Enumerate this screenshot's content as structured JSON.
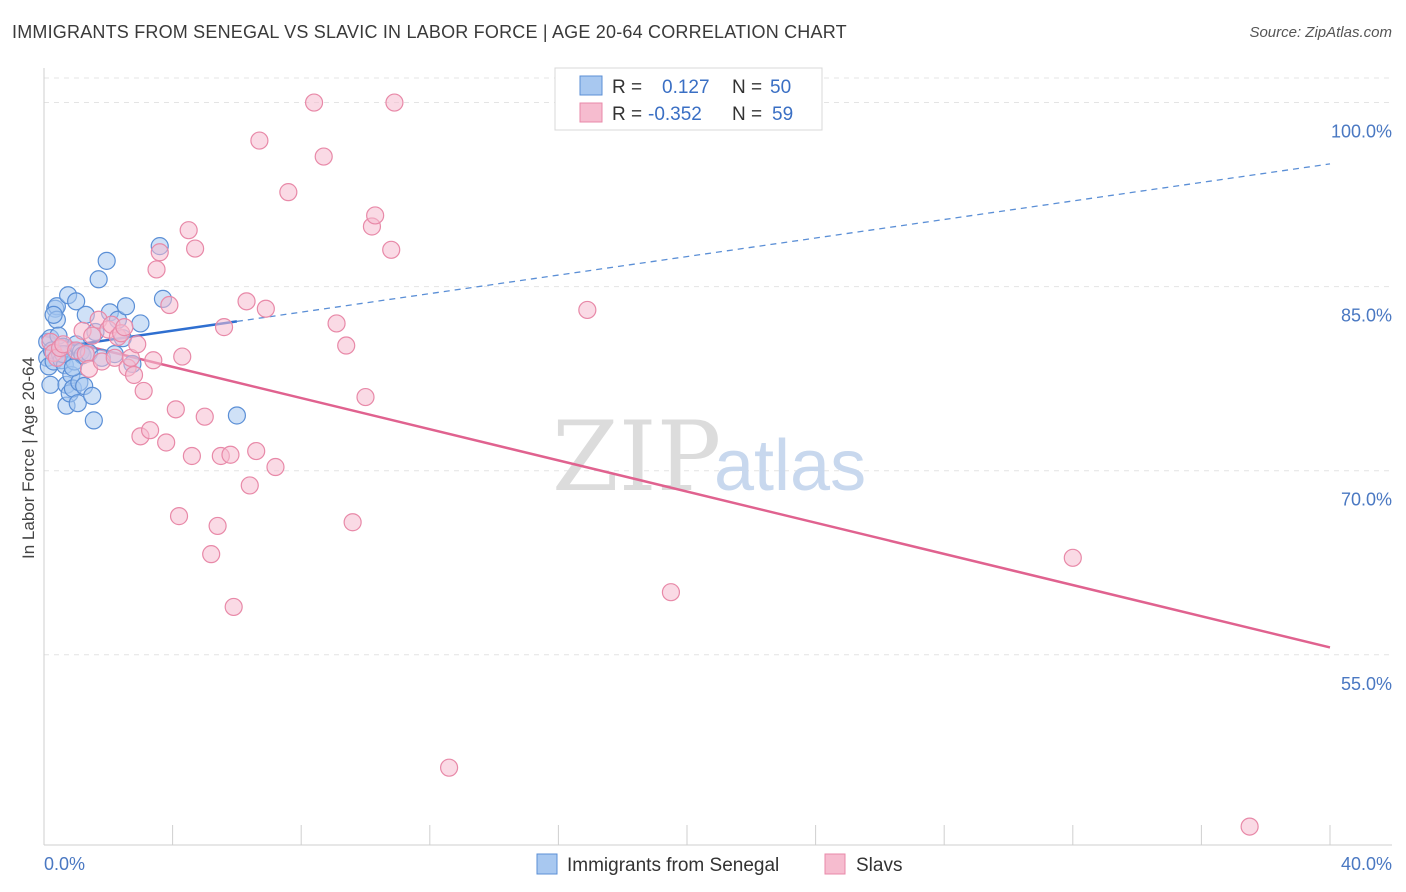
{
  "title": "IMMIGRANTS FROM SENEGAL VS SLAVIC IN LABOR FORCE | AGE 20-64 CORRELATION CHART",
  "source": "Source: ZipAtlas.com",
  "watermark": {
    "zip": "ZIP",
    "atlas": "atlas"
  },
  "colors": {
    "blue_fill": "#a8c8f0",
    "blue_stroke": "#5b8fd6",
    "blue_line": "#2f6fd0",
    "pink_fill": "#f6bccf",
    "pink_stroke": "#e889a8",
    "pink_line": "#e0628f",
    "grid": "#e4e4e4",
    "axis_label": "#4a78c2"
  },
  "legend": {
    "rows": [
      {
        "r_label": "R =",
        "r_value": "0.127",
        "n_label": "N =",
        "n_value": "50"
      },
      {
        "r_label": "R =",
        "r_value": "-0.352",
        "n_label": "N =",
        "n_value": "59"
      }
    ]
  },
  "chart_data": {
    "type": "scatter",
    "title": "IMMIGRANTS FROM SENEGAL VS SLAVIC IN LABOR FORCE | AGE 20-64 CORRELATION CHART",
    "xlabel": "",
    "ylabel": "In Labor Force | Age 20-64",
    "xlim": [
      0,
      40
    ],
    "ylim": [
      39.5,
      102
    ],
    "x_tick_labels": [
      "0.0%",
      "40.0%"
    ],
    "y_ticks": [
      55,
      70,
      85,
      100
    ],
    "y_tick_labels": [
      "55.0%",
      "70.0%",
      "85.0%",
      "100.0%"
    ],
    "grid": true,
    "series": [
      {
        "name": "Immigrants from Senegal",
        "r": 0.127,
        "n": 50,
        "trend": {
          "x0": 0,
          "y0": 79.9,
          "x_solid_end": 6.0,
          "x1": 40,
          "y1": 95.0
        },
        "points": [
          [
            0.1,
            80.5
          ],
          [
            0.1,
            79.2
          ],
          [
            0.15,
            78.5
          ],
          [
            0.2,
            80.8
          ],
          [
            0.2,
            77.0
          ],
          [
            0.25,
            79.8
          ],
          [
            0.3,
            78.9
          ],
          [
            0.35,
            83.2
          ],
          [
            0.4,
            83.4
          ],
          [
            0.4,
            82.3
          ],
          [
            0.45,
            81.0
          ],
          [
            0.5,
            79.5
          ],
          [
            0.55,
            79.0
          ],
          [
            0.6,
            80.1
          ],
          [
            0.65,
            78.6
          ],
          [
            0.7,
            77.0
          ],
          [
            0.7,
            75.3
          ],
          [
            0.75,
            84.3
          ],
          [
            0.8,
            76.3
          ],
          [
            0.85,
            77.8
          ],
          [
            0.9,
            76.7
          ],
          [
            0.95,
            78.9
          ],
          [
            1.0,
            83.8
          ],
          [
            1.0,
            80.3
          ],
          [
            1.05,
            75.5
          ],
          [
            1.1,
            77.2
          ],
          [
            1.15,
            79.7
          ],
          [
            1.2,
            79.4
          ],
          [
            1.25,
            76.9
          ],
          [
            1.3,
            82.7
          ],
          [
            1.4,
            79.6
          ],
          [
            1.5,
            76.1
          ],
          [
            1.55,
            74.1
          ],
          [
            1.6,
            81.3
          ],
          [
            1.7,
            85.6
          ],
          [
            1.8,
            79.2
          ],
          [
            1.95,
            87.1
          ],
          [
            2.05,
            82.9
          ],
          [
            2.2,
            79.5
          ],
          [
            2.3,
            82.3
          ],
          [
            2.45,
            80.8
          ],
          [
            2.55,
            83.4
          ],
          [
            2.75,
            78.7
          ],
          [
            0.3,
            82.7
          ],
          [
            0.6,
            79.5
          ],
          [
            3.0,
            82.0
          ],
          [
            3.6,
            88.3
          ],
          [
            3.7,
            84.0
          ],
          [
            6.0,
            74.5
          ],
          [
            0.9,
            78.4
          ]
        ]
      },
      {
        "name": "Slavs",
        "r": -0.352,
        "n": 59,
        "trend": {
          "x0": 0,
          "y0": 81.0,
          "x1": 40,
          "y1": 55.6
        },
        "points": [
          [
            0.2,
            80.5
          ],
          [
            0.3,
            79.6
          ],
          [
            0.4,
            79.2
          ],
          [
            0.5,
            80.0
          ],
          [
            0.6,
            80.3
          ],
          [
            1.0,
            79.8
          ],
          [
            1.2,
            81.4
          ],
          [
            1.3,
            79.5
          ],
          [
            1.4,
            78.3
          ],
          [
            1.5,
            81.0
          ],
          [
            1.7,
            82.3
          ],
          [
            1.8,
            78.9
          ],
          [
            2.0,
            81.5
          ],
          [
            2.1,
            81.9
          ],
          [
            2.2,
            79.2
          ],
          [
            2.3,
            80.9
          ],
          [
            2.4,
            81.2
          ],
          [
            2.5,
            81.7
          ],
          [
            2.6,
            78.4
          ],
          [
            2.7,
            79.2
          ],
          [
            2.8,
            77.8
          ],
          [
            2.9,
            80.3
          ],
          [
            3.0,
            72.8
          ],
          [
            3.1,
            76.5
          ],
          [
            3.3,
            73.3
          ],
          [
            3.4,
            79.0
          ],
          [
            3.5,
            86.4
          ],
          [
            3.6,
            87.8
          ],
          [
            3.8,
            72.3
          ],
          [
            3.9,
            83.5
          ],
          [
            4.1,
            75.0
          ],
          [
            4.2,
            66.3
          ],
          [
            4.3,
            79.3
          ],
          [
            4.5,
            89.6
          ],
          [
            4.6,
            71.2
          ],
          [
            4.7,
            88.1
          ],
          [
            5.0,
            74.4
          ],
          [
            5.2,
            63.2
          ],
          [
            5.4,
            65.5
          ],
          [
            5.5,
            71.2
          ],
          [
            5.6,
            81.7
          ],
          [
            5.8,
            71.3
          ],
          [
            5.9,
            58.9
          ],
          [
            6.3,
            83.8
          ],
          [
            6.4,
            68.8
          ],
          [
            6.6,
            71.6
          ],
          [
            6.7,
            96.9
          ],
          [
            6.9,
            83.2
          ],
          [
            7.2,
            70.3
          ],
          [
            7.6,
            92.7
          ],
          [
            8.4,
            100.0
          ],
          [
            8.7,
            95.6
          ],
          [
            9.1,
            82.0
          ],
          [
            9.4,
            80.2
          ],
          [
            9.6,
            65.8
          ],
          [
            10.0,
            76.0
          ],
          [
            10.2,
            89.9
          ],
          [
            10.3,
            90.8
          ],
          [
            10.8,
            88.0
          ]
        ],
        "extra_points": [
          [
            10.9,
            100.0
          ],
          [
            12.6,
            45.8
          ],
          [
            16.9,
            83.1
          ],
          [
            19.5,
            60.1
          ],
          [
            32.0,
            62.9
          ],
          [
            37.5,
            41.0
          ]
        ]
      }
    ]
  },
  "bottom_legend": [
    "Immigrants from Senegal",
    "Slavs"
  ]
}
